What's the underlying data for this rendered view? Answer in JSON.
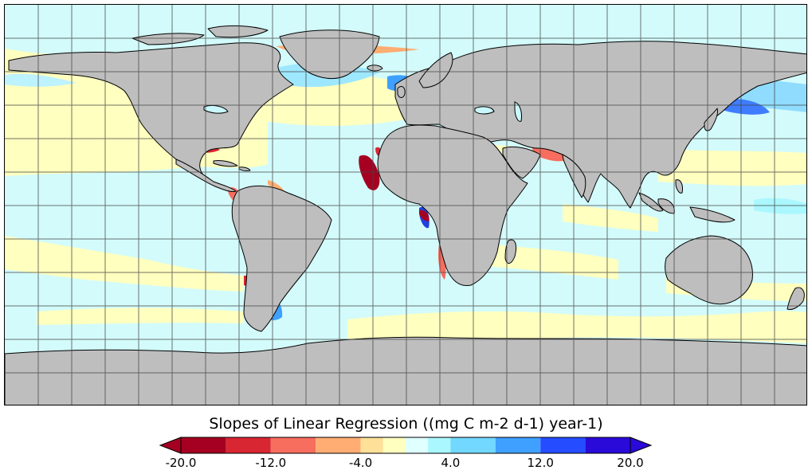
{
  "map": {
    "projection": "equirectangular",
    "ocean_base_color": "#cdfafa",
    "land_color": "#bebebe",
    "coastline_color": "#000000",
    "grid_color": "#555555",
    "grid": true
  },
  "legend": {
    "title": "Slopes of Linear Regression ((mg C m-2 d-1) year-1)",
    "min": -20.0,
    "max": 20.0,
    "tick_labels": [
      "-20.0",
      "-12.0",
      "-4.0",
      "4.0",
      "12.0",
      "20.0"
    ],
    "bins": [
      {
        "from": -20,
        "to": -16,
        "color": "#a50021"
      },
      {
        "from": -16,
        "to": -12,
        "color": "#d82632"
      },
      {
        "from": -12,
        "to": -8,
        "color": "#f76d5e"
      },
      {
        "from": -8,
        "to": -4,
        "color": "#ffad72"
      },
      {
        "from": -4,
        "to": -2,
        "color": "#ffe099"
      },
      {
        "from": -2,
        "to": 0,
        "color": "#ffffbf"
      },
      {
        "from": 0,
        "to": 2,
        "color": "#e0ffff"
      },
      {
        "from": 2,
        "to": 4,
        "color": "#aaf7ff"
      },
      {
        "from": 4,
        "to": 8,
        "color": "#72d8ff"
      },
      {
        "from": 8,
        "to": 12,
        "color": "#3fa0ff"
      },
      {
        "from": 12,
        "to": 16,
        "color": "#264cff"
      },
      {
        "from": 16,
        "to": 20,
        "color": "#290ad8"
      }
    ],
    "under_color": "#a50021",
    "over_color": "#290ad8"
  }
}
